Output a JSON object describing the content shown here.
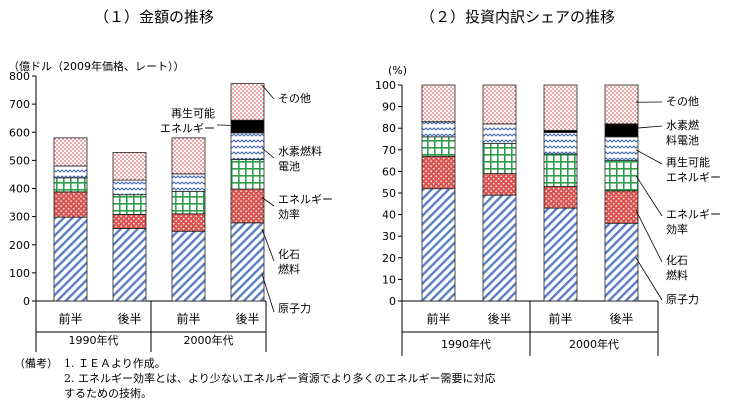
{
  "titles": {
    "left": "（１）金額の推移",
    "right": "（２）投資内訳シェアの推移"
  },
  "notes": {
    "head": "（備考）",
    "line1": "1. ＩＥＡより作成。",
    "line2": "2. エネルギー効率とは、より少ないエネルギー資源でより多くのエネルギー需要に対応",
    "line3": "するための技術。"
  },
  "colors": {
    "nuclear": "#5b7fc0",
    "fossil": "#d9534f",
    "renewable": "#2e9e4a",
    "hydrogen": "#3a63a8",
    "other": "#e04040",
    "axis": "#000000"
  },
  "chart_data": [
    {
      "type": "bar",
      "stacked": true,
      "ylabel": "（億ドル（2009年価格、レート））",
      "ylim": [
        0,
        800
      ],
      "yticks": [
        "0",
        "100",
        "200",
        "300",
        "400",
        "500",
        "600",
        "700",
        "800"
      ],
      "categories": [
        "前半",
        "後半",
        "前半",
        "後半"
      ],
      "groups": [
        "1990年代",
        "2000年代"
      ],
      "series": [
        {
          "name": "原子力",
          "values": [
            298,
            258,
            248,
            278
          ]
        },
        {
          "name": "化石燃料",
          "values": [
            90,
            50,
            62,
            120
          ]
        },
        {
          "name": "エネルギー効率",
          "values": [
            50,
            70,
            80,
            105
          ]
        },
        {
          "name": "水素燃料電池",
          "values": [
            42,
            52,
            62,
            95
          ]
        },
        {
          "name": "再生可能エネルギー",
          "values": [
            0,
            0,
            0,
            45
          ]
        },
        {
          "name": "その他",
          "values": [
            100,
            98,
            128,
            130
          ]
        }
      ],
      "legend_labels": [
        {
          "key": "other",
          "text": "その他"
        },
        {
          "key": "renewable",
          "text": "再生可能\nエネルギー"
        },
        {
          "key": "hydrogen",
          "text": "水素燃料\n電池"
        },
        {
          "key": "efficiency",
          "text": "エネルギー\n効率"
        },
        {
          "key": "fossil",
          "text": "化石\n燃料"
        },
        {
          "key": "nuclear",
          "text": "原子力"
        }
      ]
    },
    {
      "type": "bar",
      "stacked": true,
      "ylabel": "(%)",
      "ylim": [
        0,
        100
      ],
      "yticks": [
        "0",
        "10",
        "20",
        "30",
        "40",
        "50",
        "60",
        "70",
        "80",
        "90",
        "100"
      ],
      "categories": [
        "前半",
        "後半",
        "前半",
        "後半"
      ],
      "groups": [
        "1990年代",
        "2000年代"
      ],
      "series": [
        {
          "name": "原子力",
          "values": [
            52,
            49,
            43,
            36
          ]
        },
        {
          "name": "化石燃料",
          "values": [
            15,
            10,
            10,
            15
          ]
        },
        {
          "name": "エネルギー効率",
          "values": [
            9,
            14,
            15,
            14
          ]
        },
        {
          "name": "水素燃料電池",
          "values": [
            7,
            9,
            10,
            11
          ]
        },
        {
          "name": "再生可能エネルギー",
          "values": [
            0,
            0,
            1,
            6
          ]
        },
        {
          "name": "その他",
          "values": [
            17,
            18,
            21,
            18
          ]
        }
      ],
      "legend_labels": [
        {
          "key": "other",
          "text": "その他"
        },
        {
          "key": "renewable",
          "text": "水素燃\n料電池"
        },
        {
          "key": "hydrogen",
          "text": "再生可能\nエネルギー"
        },
        {
          "key": "efficiency",
          "text": "エネルギー\n効率"
        },
        {
          "key": "fossil",
          "text": "化石\n燃料"
        },
        {
          "key": "nuclear",
          "text": "原子力"
        }
      ]
    }
  ]
}
